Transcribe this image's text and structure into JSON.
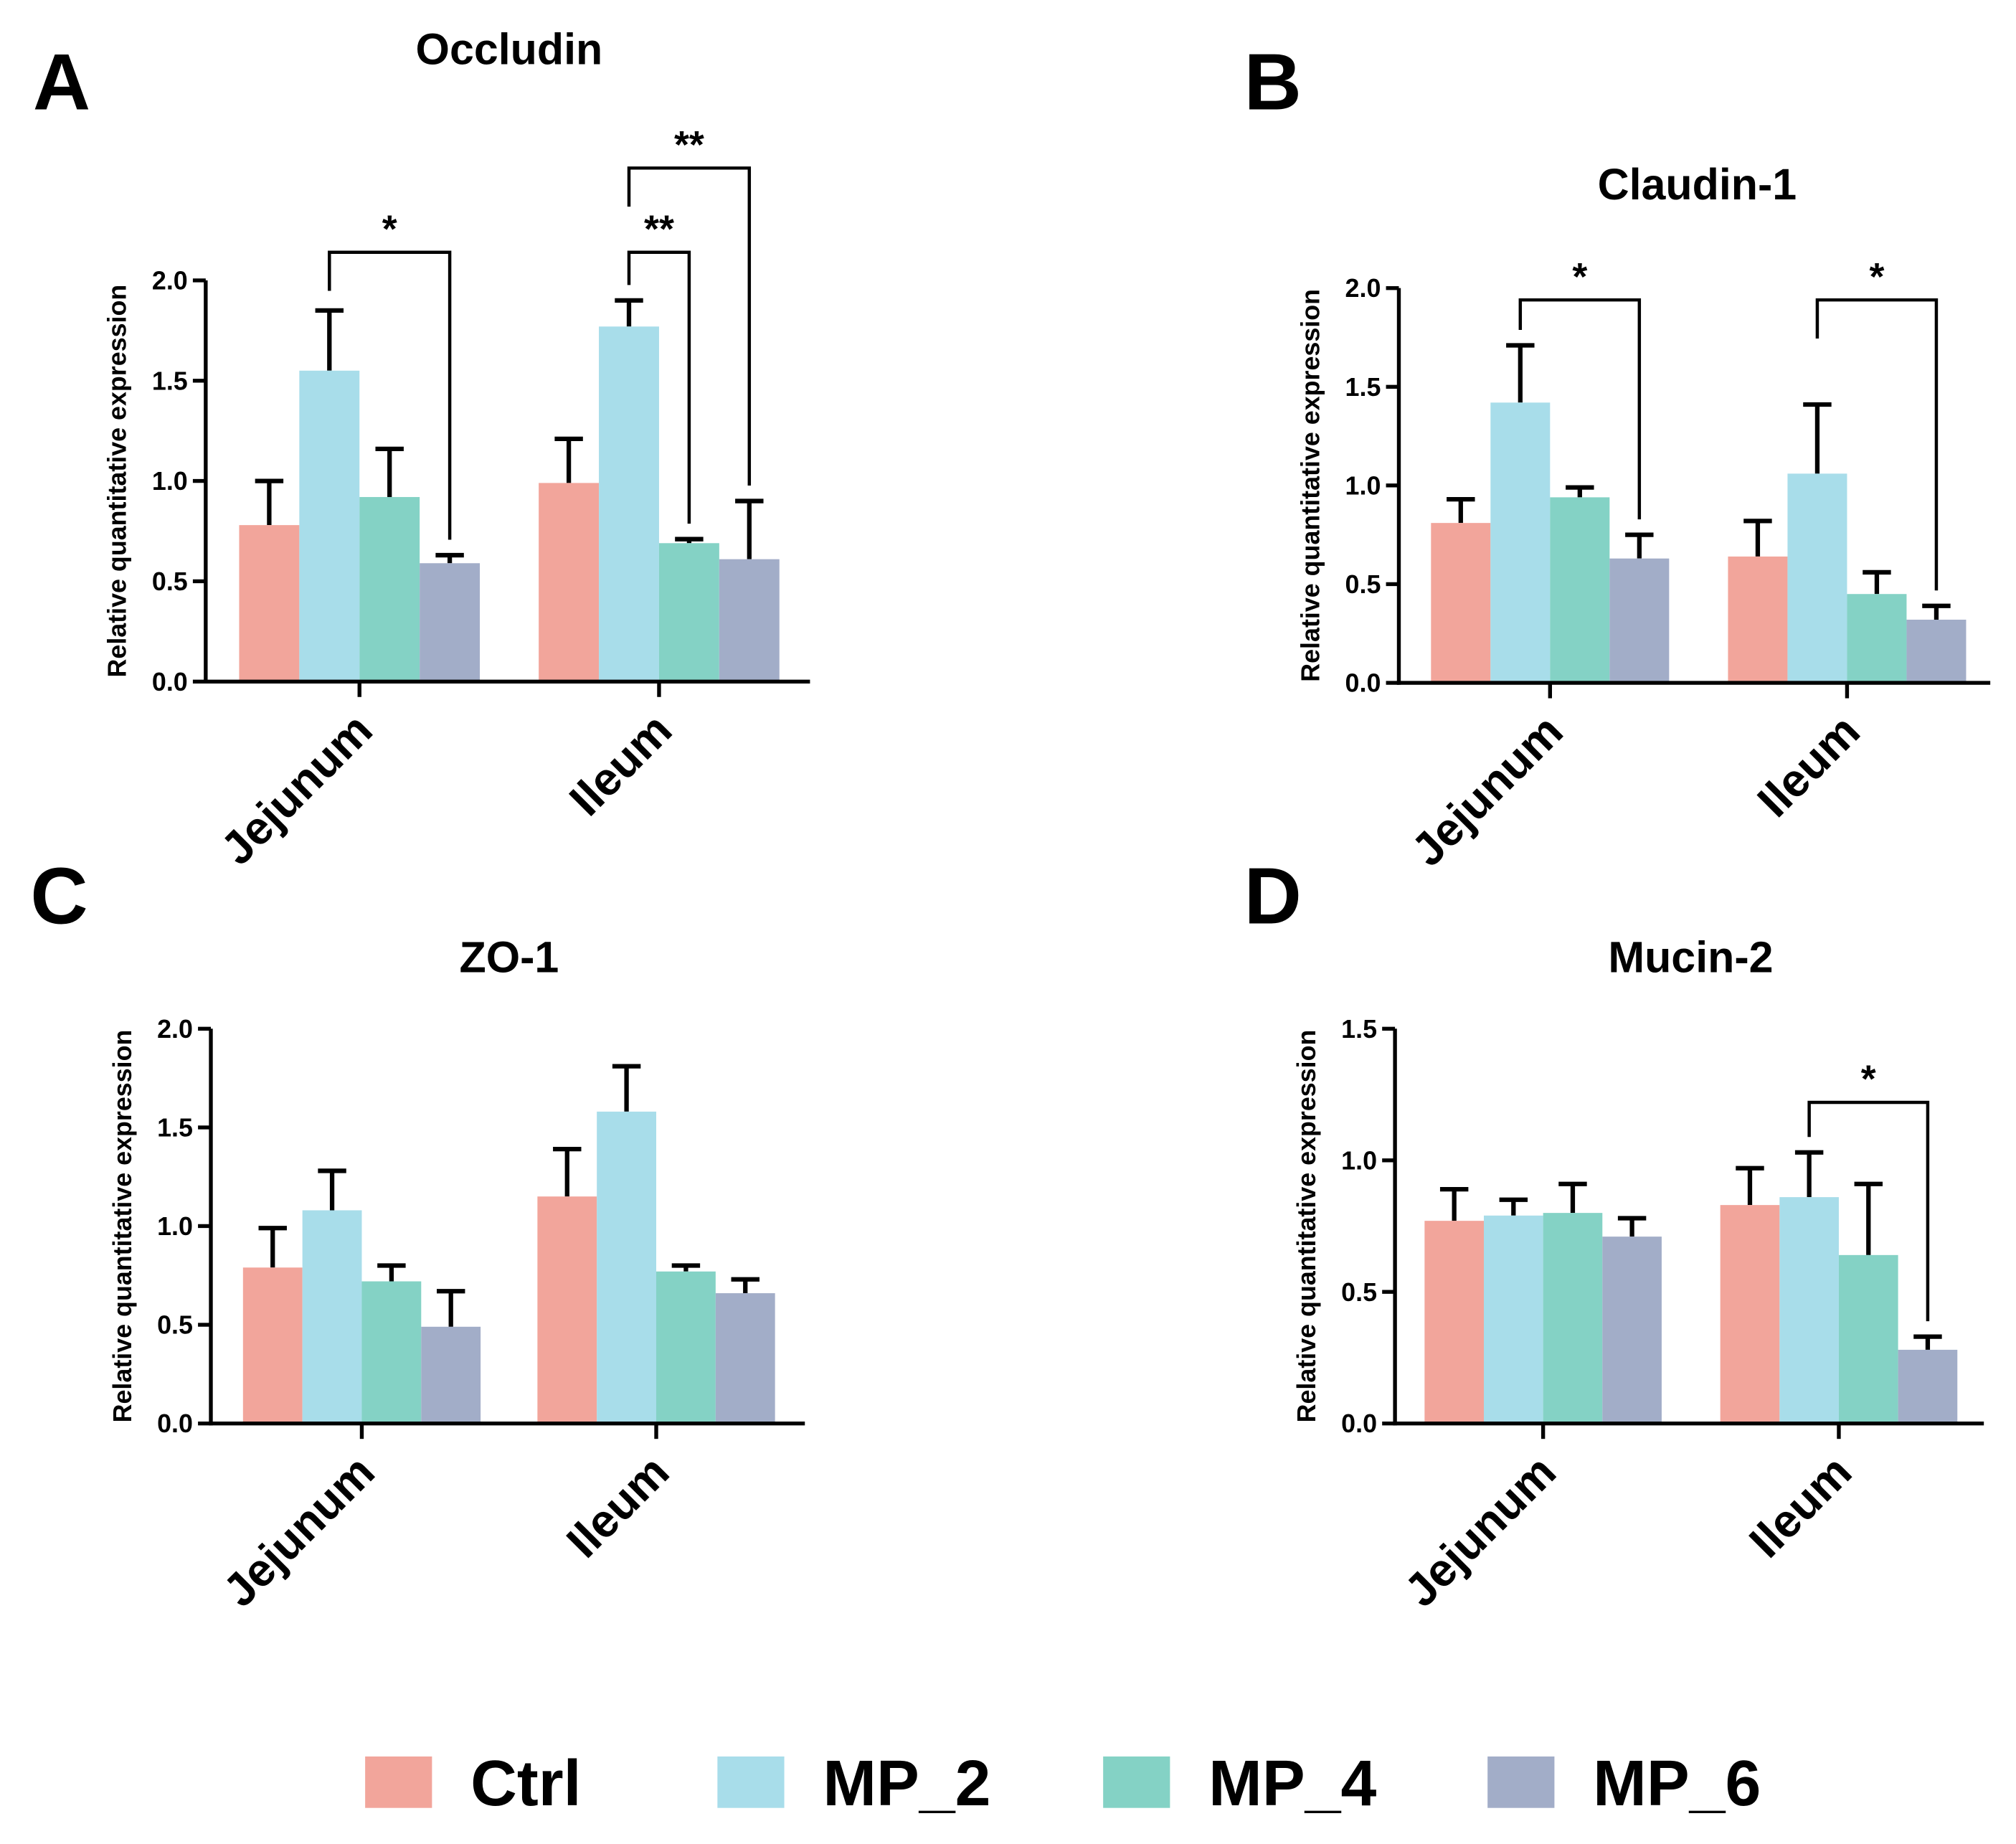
{
  "legend": {
    "placement": "bottom",
    "entries": [
      {
        "name": "Ctrl",
        "color": "#F2A59B"
      },
      {
        "name": "MP_2",
        "color": "#A8DDEA"
      },
      {
        "name": "MP_4",
        "color": "#84D2C5"
      },
      {
        "name": "MP_6",
        "color": "#A2ADC8"
      }
    ]
  },
  "chart_data": [
    {
      "panel": "A",
      "type": "bar",
      "title": "Occludin",
      "ylabel": "Relative quantitative expression",
      "xlabel": "",
      "ylim": [
        0,
        2.0
      ],
      "yticks": [
        "0.0",
        "0.5",
        "1.0",
        "1.5",
        "2.0"
      ],
      "ytick_values": [
        0,
        0.5,
        1.0,
        1.5,
        2.0
      ],
      "categories": [
        "Jejunum",
        "Ileum"
      ],
      "series": [
        {
          "name": "Ctrl",
          "values": [
            0.78,
            0.99
          ],
          "errors": [
            0.22,
            0.22
          ]
        },
        {
          "name": "MP_2",
          "values": [
            1.55,
            1.77
          ],
          "errors": [
            0.3,
            0.13
          ]
        },
        {
          "name": "MP_4",
          "values": [
            0.92,
            0.69
          ],
          "errors": [
            0.24,
            0.02
          ]
        },
        {
          "name": "MP_6",
          "values": [
            0.59,
            0.61
          ],
          "errors": [
            0.04,
            0.29
          ]
        }
      ],
      "significance": [
        {
          "category": 0,
          "from": 1,
          "to": 3,
          "y": 2.14,
          "label": "*"
        },
        {
          "category": 1,
          "from": 1,
          "to": 2,
          "y": 2.14,
          "label": "**"
        },
        {
          "category": 1,
          "from": 1,
          "to": 3,
          "y": 2.56,
          "label": "**"
        }
      ]
    },
    {
      "panel": "B",
      "type": "bar",
      "title": "Claudin-1",
      "ylabel": "Relative quantitative expression",
      "xlabel": "",
      "ylim": [
        0,
        2.0
      ],
      "yticks": [
        "0.0",
        "0.5",
        "1.0",
        "1.5",
        "2.0"
      ],
      "ytick_values": [
        0,
        0.5,
        1.0,
        1.5,
        2.0
      ],
      "categories": [
        "Jejunum",
        "Ileum"
      ],
      "series": [
        {
          "name": "Ctrl",
          "values": [
            0.81,
            0.64
          ],
          "errors": [
            0.12,
            0.18
          ]
        },
        {
          "name": "MP_2",
          "values": [
            1.42,
            1.06
          ],
          "errors": [
            0.29,
            0.35
          ]
        },
        {
          "name": "MP_4",
          "values": [
            0.94,
            0.45
          ],
          "errors": [
            0.05,
            0.11
          ]
        },
        {
          "name": "MP_6",
          "values": [
            0.63,
            0.32
          ],
          "errors": [
            0.12,
            0.07
          ]
        }
      ],
      "significance": [
        {
          "category": 0,
          "from": 1,
          "to": 3,
          "y": 1.94,
          "label": "*"
        },
        {
          "category": 1,
          "from": 1,
          "to": 3,
          "y": 1.94,
          "label": "*"
        }
      ]
    },
    {
      "panel": "C",
      "type": "bar",
      "title": "ZO-1",
      "ylabel": "Relative quantitative expression",
      "xlabel": "",
      "ylim": [
        0,
        2.0
      ],
      "yticks": [
        "0.0",
        "0.5",
        "1.0",
        "1.5",
        "2.0"
      ],
      "ytick_values": [
        0,
        0.5,
        1.0,
        1.5,
        2.0
      ],
      "categories": [
        "Jejunum",
        "Ileum"
      ],
      "series": [
        {
          "name": "Ctrl",
          "values": [
            0.79,
            1.15
          ],
          "errors": [
            0.2,
            0.24
          ]
        },
        {
          "name": "MP_2",
          "values": [
            1.08,
            1.58
          ],
          "errors": [
            0.2,
            0.23
          ]
        },
        {
          "name": "MP_4",
          "values": [
            0.72,
            0.77
          ],
          "errors": [
            0.08,
            0.03
          ]
        },
        {
          "name": "MP_6",
          "values": [
            0.49,
            0.66
          ],
          "errors": [
            0.18,
            0.07
          ]
        }
      ],
      "significance": []
    },
    {
      "panel": "D",
      "type": "bar",
      "title": "Mucin-2",
      "ylabel": "Relative quantitative expression",
      "xlabel": "",
      "ylim": [
        0,
        1.5
      ],
      "yticks": [
        "0.0",
        "0.5",
        "1.0",
        "1.5"
      ],
      "ytick_values": [
        0,
        0.5,
        1.0,
        1.5
      ],
      "categories": [
        "Jejunum",
        "Ileum"
      ],
      "series": [
        {
          "name": "Ctrl",
          "values": [
            0.77,
            0.83
          ],
          "errors": [
            0.12,
            0.14
          ]
        },
        {
          "name": "MP_2",
          "values": [
            0.79,
            0.86
          ],
          "errors": [
            0.06,
            0.17
          ]
        },
        {
          "name": "MP_4",
          "values": [
            0.8,
            0.64
          ],
          "errors": [
            0.11,
            0.27
          ]
        },
        {
          "name": "MP_6",
          "values": [
            0.71,
            0.28
          ],
          "errors": [
            0.07,
            0.05
          ]
        }
      ],
      "significance": [
        {
          "category": 1,
          "from": 1,
          "to": 3,
          "y": 1.22,
          "label": "*"
        }
      ]
    }
  ]
}
